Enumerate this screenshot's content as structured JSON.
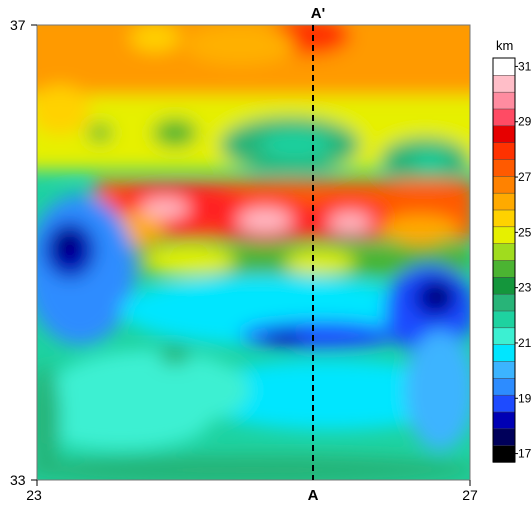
{
  "map": {
    "x_axis": {
      "min_label": "23",
      "max_label": "27",
      "range": [
        23,
        27
      ]
    },
    "y_axis": {
      "min_label": "33",
      "max_label": "37",
      "range": [
        33,
        37
      ]
    },
    "profile": {
      "start_label": "A",
      "end_label": "A'",
      "longitude": 25.25
    },
    "colorbar": {
      "unit": "km",
      "tick_labels": [
        "31",
        "29",
        "27",
        "25",
        "23",
        "21",
        "19",
        "17"
      ],
      "range": [
        17,
        31
      ],
      "colors_low_to_high": [
        "#000000",
        "#00005a",
        "#0000b4",
        "#1e4bff",
        "#2d8cff",
        "#3cb4ff",
        "#00e6ff",
        "#3cf0d2",
        "#1ed2a0",
        "#28b478",
        "#14963c",
        "#4bb432",
        "#a0dc1e",
        "#e6f000",
        "#ffd200",
        "#ffaa00",
        "#ff8200",
        "#ff5a00",
        "#ff3200",
        "#e60000",
        "#ff4b64",
        "#ff8ca0",
        "#ffbec8",
        "#ffffff"
      ]
    }
  }
}
